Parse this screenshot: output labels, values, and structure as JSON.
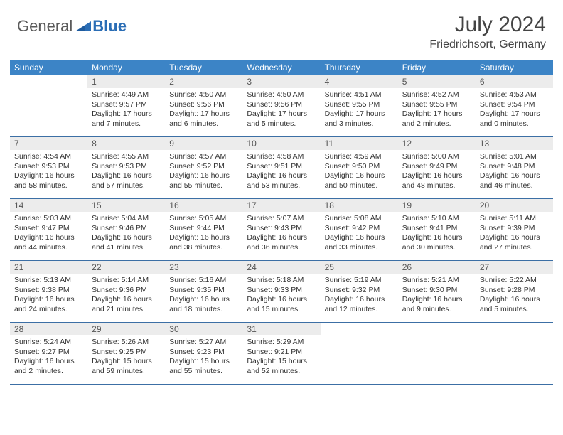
{
  "logo": {
    "general": "General",
    "blue": "Blue"
  },
  "brand_colors": {
    "general": "#5a5a5a",
    "blue": "#2a6db5",
    "header_bg": "#3c84c6",
    "daynum_bg": "#ececec",
    "rule": "#3c6fa5"
  },
  "title": "July 2024",
  "location": "Friedrichsort, Germany",
  "dow": [
    "Sunday",
    "Monday",
    "Tuesday",
    "Wednesday",
    "Thursday",
    "Friday",
    "Saturday"
  ],
  "weeks": [
    [
      {
        "n": "",
        "sunrise": "",
        "sunset": "",
        "daylight": ""
      },
      {
        "n": "1",
        "sunrise": "Sunrise: 4:49 AM",
        "sunset": "Sunset: 9:57 PM",
        "daylight": "Daylight: 17 hours and 7 minutes."
      },
      {
        "n": "2",
        "sunrise": "Sunrise: 4:50 AM",
        "sunset": "Sunset: 9:56 PM",
        "daylight": "Daylight: 17 hours and 6 minutes."
      },
      {
        "n": "3",
        "sunrise": "Sunrise: 4:50 AM",
        "sunset": "Sunset: 9:56 PM",
        "daylight": "Daylight: 17 hours and 5 minutes."
      },
      {
        "n": "4",
        "sunrise": "Sunrise: 4:51 AM",
        "sunset": "Sunset: 9:55 PM",
        "daylight": "Daylight: 17 hours and 3 minutes."
      },
      {
        "n": "5",
        "sunrise": "Sunrise: 4:52 AM",
        "sunset": "Sunset: 9:55 PM",
        "daylight": "Daylight: 17 hours and 2 minutes."
      },
      {
        "n": "6",
        "sunrise": "Sunrise: 4:53 AM",
        "sunset": "Sunset: 9:54 PM",
        "daylight": "Daylight: 17 hours and 0 minutes."
      }
    ],
    [
      {
        "n": "7",
        "sunrise": "Sunrise: 4:54 AM",
        "sunset": "Sunset: 9:53 PM",
        "daylight": "Daylight: 16 hours and 58 minutes."
      },
      {
        "n": "8",
        "sunrise": "Sunrise: 4:55 AM",
        "sunset": "Sunset: 9:53 PM",
        "daylight": "Daylight: 16 hours and 57 minutes."
      },
      {
        "n": "9",
        "sunrise": "Sunrise: 4:57 AM",
        "sunset": "Sunset: 9:52 PM",
        "daylight": "Daylight: 16 hours and 55 minutes."
      },
      {
        "n": "10",
        "sunrise": "Sunrise: 4:58 AM",
        "sunset": "Sunset: 9:51 PM",
        "daylight": "Daylight: 16 hours and 53 minutes."
      },
      {
        "n": "11",
        "sunrise": "Sunrise: 4:59 AM",
        "sunset": "Sunset: 9:50 PM",
        "daylight": "Daylight: 16 hours and 50 minutes."
      },
      {
        "n": "12",
        "sunrise": "Sunrise: 5:00 AM",
        "sunset": "Sunset: 9:49 PM",
        "daylight": "Daylight: 16 hours and 48 minutes."
      },
      {
        "n": "13",
        "sunrise": "Sunrise: 5:01 AM",
        "sunset": "Sunset: 9:48 PM",
        "daylight": "Daylight: 16 hours and 46 minutes."
      }
    ],
    [
      {
        "n": "14",
        "sunrise": "Sunrise: 5:03 AM",
        "sunset": "Sunset: 9:47 PM",
        "daylight": "Daylight: 16 hours and 44 minutes."
      },
      {
        "n": "15",
        "sunrise": "Sunrise: 5:04 AM",
        "sunset": "Sunset: 9:46 PM",
        "daylight": "Daylight: 16 hours and 41 minutes."
      },
      {
        "n": "16",
        "sunrise": "Sunrise: 5:05 AM",
        "sunset": "Sunset: 9:44 PM",
        "daylight": "Daylight: 16 hours and 38 minutes."
      },
      {
        "n": "17",
        "sunrise": "Sunrise: 5:07 AM",
        "sunset": "Sunset: 9:43 PM",
        "daylight": "Daylight: 16 hours and 36 minutes."
      },
      {
        "n": "18",
        "sunrise": "Sunrise: 5:08 AM",
        "sunset": "Sunset: 9:42 PM",
        "daylight": "Daylight: 16 hours and 33 minutes."
      },
      {
        "n": "19",
        "sunrise": "Sunrise: 5:10 AM",
        "sunset": "Sunset: 9:41 PM",
        "daylight": "Daylight: 16 hours and 30 minutes."
      },
      {
        "n": "20",
        "sunrise": "Sunrise: 5:11 AM",
        "sunset": "Sunset: 9:39 PM",
        "daylight": "Daylight: 16 hours and 27 minutes."
      }
    ],
    [
      {
        "n": "21",
        "sunrise": "Sunrise: 5:13 AM",
        "sunset": "Sunset: 9:38 PM",
        "daylight": "Daylight: 16 hours and 24 minutes."
      },
      {
        "n": "22",
        "sunrise": "Sunrise: 5:14 AM",
        "sunset": "Sunset: 9:36 PM",
        "daylight": "Daylight: 16 hours and 21 minutes."
      },
      {
        "n": "23",
        "sunrise": "Sunrise: 5:16 AM",
        "sunset": "Sunset: 9:35 PM",
        "daylight": "Daylight: 16 hours and 18 minutes."
      },
      {
        "n": "24",
        "sunrise": "Sunrise: 5:18 AM",
        "sunset": "Sunset: 9:33 PM",
        "daylight": "Daylight: 16 hours and 15 minutes."
      },
      {
        "n": "25",
        "sunrise": "Sunrise: 5:19 AM",
        "sunset": "Sunset: 9:32 PM",
        "daylight": "Daylight: 16 hours and 12 minutes."
      },
      {
        "n": "26",
        "sunrise": "Sunrise: 5:21 AM",
        "sunset": "Sunset: 9:30 PM",
        "daylight": "Daylight: 16 hours and 9 minutes."
      },
      {
        "n": "27",
        "sunrise": "Sunrise: 5:22 AM",
        "sunset": "Sunset: 9:28 PM",
        "daylight": "Daylight: 16 hours and 5 minutes."
      }
    ],
    [
      {
        "n": "28",
        "sunrise": "Sunrise: 5:24 AM",
        "sunset": "Sunset: 9:27 PM",
        "daylight": "Daylight: 16 hours and 2 minutes."
      },
      {
        "n": "29",
        "sunrise": "Sunrise: 5:26 AM",
        "sunset": "Sunset: 9:25 PM",
        "daylight": "Daylight: 15 hours and 59 minutes."
      },
      {
        "n": "30",
        "sunrise": "Sunrise: 5:27 AM",
        "sunset": "Sunset: 9:23 PM",
        "daylight": "Daylight: 15 hours and 55 minutes."
      },
      {
        "n": "31",
        "sunrise": "Sunrise: 5:29 AM",
        "sunset": "Sunset: 9:21 PM",
        "daylight": "Daylight: 15 hours and 52 minutes."
      },
      {
        "n": "",
        "sunrise": "",
        "sunset": "",
        "daylight": ""
      },
      {
        "n": "",
        "sunrise": "",
        "sunset": "",
        "daylight": ""
      },
      {
        "n": "",
        "sunrise": "",
        "sunset": "",
        "daylight": ""
      }
    ]
  ]
}
